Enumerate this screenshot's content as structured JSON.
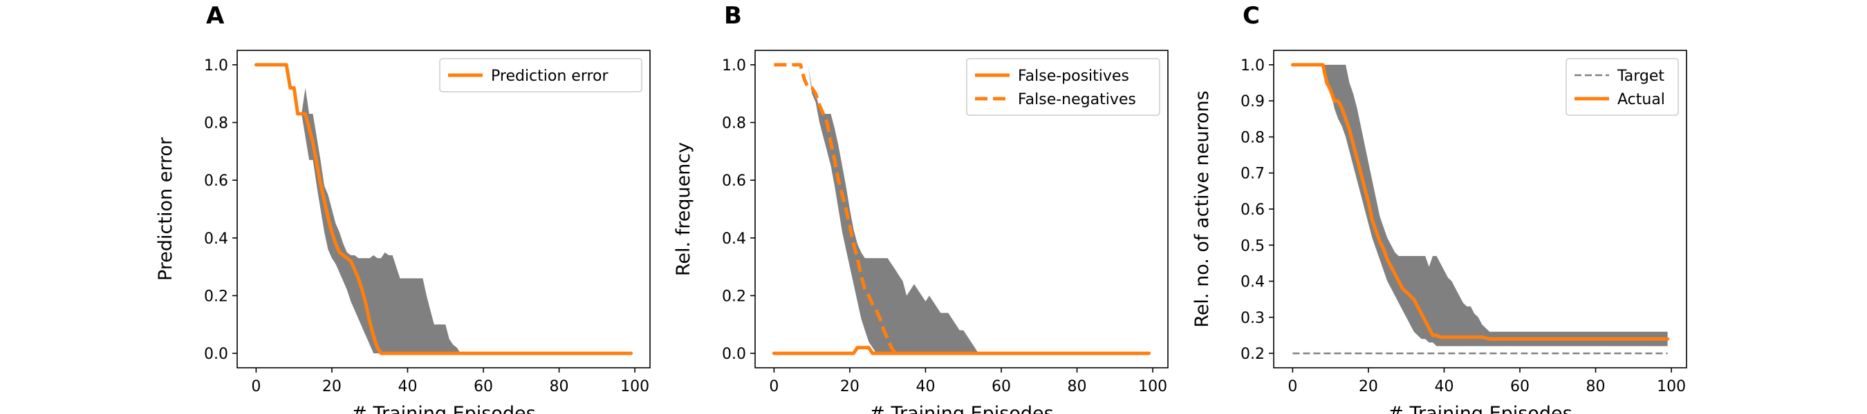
{
  "chart_data": [
    {
      "panel_label": "A",
      "type": "line",
      "xlabel": "# Training Episodes",
      "ylabel": "Prediction error",
      "xlim": [
        -5,
        104
      ],
      "ylim": [
        -0.05,
        1.05
      ],
      "xticks": [
        0,
        20,
        40,
        60,
        80,
        100
      ],
      "yticks": [
        0.0,
        0.2,
        0.4,
        0.6,
        0.8,
        1.0
      ],
      "ytick_labels": [
        "0.0",
        "0.2",
        "0.4",
        "0.6",
        "0.8",
        "1.0"
      ],
      "grid": false,
      "legend_position": "upper-right",
      "band_color": "#808080",
      "band": {
        "x": [
          0,
          8,
          10,
          11,
          12,
          13,
          14,
          15,
          16,
          17,
          18,
          19,
          20,
          21,
          22,
          23,
          24,
          25,
          26,
          27,
          28,
          29,
          30,
          31,
          32,
          33,
          34,
          35,
          36,
          37,
          38,
          39,
          40,
          41,
          42,
          43,
          44,
          45,
          46,
          47,
          48,
          49,
          50,
          51,
          52,
          53,
          54,
          55,
          56,
          60,
          80,
          99
        ],
        "upper": [
          1.0,
          1.0,
          0.92,
          0.92,
          0.83,
          0.92,
          0.83,
          0.83,
          0.75,
          0.67,
          0.58,
          0.55,
          0.5,
          0.45,
          0.42,
          0.38,
          0.35,
          0.34,
          0.34,
          0.33,
          0.33,
          0.33,
          0.33,
          0.34,
          0.33,
          0.33,
          0.35,
          0.34,
          0.34,
          0.3,
          0.26,
          0.26,
          0.26,
          0.26,
          0.26,
          0.26,
          0.26,
          0.2,
          0.15,
          0.1,
          0.1,
          0.1,
          0.1,
          0.05,
          0.03,
          0.02,
          0.0,
          0.0,
          0.0,
          0.0,
          0.0,
          0.0
        ],
        "lower": [
          1.0,
          1.0,
          0.92,
          0.92,
          0.83,
          0.75,
          0.67,
          0.67,
          0.58,
          0.5,
          0.42,
          0.36,
          0.33,
          0.31,
          0.28,
          0.25,
          0.22,
          0.18,
          0.15,
          0.12,
          0.09,
          0.06,
          0.03,
          0.0,
          0.0,
          0.0,
          0.0,
          0.0,
          0.0,
          0.0,
          0.0,
          0.0,
          0.0,
          0.0,
          0.0,
          0.0,
          0.0,
          0.0,
          0.0,
          0.0,
          0.0,
          0.0,
          0.0,
          0.0,
          0.0,
          0.0,
          0.0,
          0.0,
          0.0,
          0.0,
          0.0,
          0.0
        ]
      },
      "series": [
        {
          "name": "Prediction error",
          "color": "#ff7f0e",
          "dash": "solid",
          "x": [
            0,
            8,
            9,
            10,
            11,
            12,
            13,
            14,
            15,
            16,
            17,
            18,
            19,
            20,
            21,
            22,
            23,
            24,
            25,
            26,
            27,
            28,
            29,
            30,
            31,
            32,
            33,
            34,
            36,
            40,
            60,
            80,
            99
          ],
          "y": [
            1.0,
            1.0,
            0.92,
            0.92,
            0.83,
            0.83,
            0.83,
            0.78,
            0.73,
            0.66,
            0.59,
            0.53,
            0.47,
            0.42,
            0.38,
            0.35,
            0.34,
            0.33,
            0.32,
            0.29,
            0.26,
            0.22,
            0.17,
            0.11,
            0.06,
            0.02,
            0.0,
            0.0,
            0.0,
            0.0,
            0.0,
            0.0,
            0.0
          ]
        }
      ]
    },
    {
      "panel_label": "B",
      "type": "line",
      "xlabel": "# Training Episodes",
      "ylabel": "Rel. frequency",
      "xlim": [
        -5,
        104
      ],
      "ylim": [
        -0.05,
        1.05
      ],
      "xticks": [
        0,
        20,
        40,
        60,
        80,
        100
      ],
      "yticks": [
        0.0,
        0.2,
        0.4,
        0.6,
        0.8,
        1.0
      ],
      "ytick_labels": [
        "0.0",
        "0.2",
        "0.4",
        "0.6",
        "0.8",
        "1.0"
      ],
      "grid": false,
      "legend_position": "upper-right",
      "band_color": "#808080",
      "band": {
        "x": [
          0,
          9,
          10,
          11,
          12,
          13,
          14,
          15,
          16,
          17,
          18,
          19,
          20,
          21,
          22,
          23,
          24,
          25,
          26,
          27,
          28,
          29,
          30,
          31,
          32,
          33,
          34,
          35,
          36,
          37,
          38,
          39,
          40,
          41,
          42,
          43,
          44,
          45,
          46,
          47,
          48,
          49,
          50,
          51,
          52,
          53,
          54,
          55,
          56,
          60,
          80,
          99
        ],
        "upper": [
          1.0,
          1.0,
          0.92,
          0.9,
          0.85,
          0.83,
          0.83,
          0.83,
          0.78,
          0.72,
          0.65,
          0.58,
          0.5,
          0.43,
          0.38,
          0.35,
          0.33,
          0.33,
          0.33,
          0.33,
          0.33,
          0.33,
          0.33,
          0.31,
          0.29,
          0.27,
          0.25,
          0.2,
          0.22,
          0.24,
          0.22,
          0.2,
          0.18,
          0.2,
          0.18,
          0.16,
          0.14,
          0.14,
          0.14,
          0.12,
          0.1,
          0.08,
          0.08,
          0.06,
          0.04,
          0.02,
          0.0,
          0.0,
          0.0,
          0.0,
          0.0,
          0.0
        ],
        "lower": [
          1.0,
          1.0,
          0.9,
          0.87,
          0.8,
          0.75,
          0.7,
          0.65,
          0.58,
          0.5,
          0.42,
          0.36,
          0.3,
          0.24,
          0.18,
          0.12,
          0.08,
          0.04,
          0.02,
          0.0,
          0.0,
          0.0,
          0.0,
          0.0,
          0.0,
          0.0,
          0.0,
          0.0,
          0.0,
          0.0,
          0.0,
          0.0,
          0.0,
          0.0,
          0.0,
          0.0,
          0.0,
          0.0,
          0.0,
          0.0,
          0.0,
          0.0,
          0.0,
          0.0,
          0.0,
          0.0,
          0.0,
          0.0,
          0.0,
          0.0,
          0.0,
          0.0
        ]
      },
      "series": [
        {
          "name": "False-positives",
          "color": "#ff7f0e",
          "dash": "solid",
          "x": [
            0,
            20,
            21,
            22,
            24,
            25,
            26,
            27,
            28,
            40,
            60,
            80,
            99
          ],
          "y": [
            0.0,
            0.0,
            0.0,
            0.02,
            0.02,
            0.02,
            0.0,
            0.0,
            0.0,
            0.0,
            0.0,
            0.0,
            0.0
          ]
        },
        {
          "name": "False-negatives",
          "color": "#ff7f0e",
          "dash": "dashed",
          "x": [
            0,
            7,
            8,
            9,
            10,
            11,
            12,
            13,
            14,
            15,
            16,
            17,
            18,
            19,
            20,
            21,
            22,
            23,
            24,
            25,
            26,
            27,
            28,
            29,
            30,
            31,
            32,
            33
          ],
          "y": [
            1.0,
            1.0,
            0.95,
            0.92,
            0.92,
            0.9,
            0.86,
            0.83,
            0.8,
            0.73,
            0.67,
            0.6,
            0.55,
            0.5,
            0.44,
            0.38,
            0.33,
            0.27,
            0.22,
            0.2,
            0.17,
            0.15,
            0.12,
            0.08,
            0.05,
            0.02,
            0.0,
            0.0
          ]
        }
      ]
    },
    {
      "panel_label": "C",
      "type": "line",
      "xlabel": "# Training Episodes",
      "ylabel": "Rel. no. of active neurons",
      "xlim": [
        -5,
        104
      ],
      "ylim": [
        0.16,
        1.04
      ],
      "xticks": [
        0,
        20,
        40,
        60,
        80,
        100
      ],
      "yticks": [
        0.2,
        0.3,
        0.4,
        0.5,
        0.6,
        0.7,
        0.8,
        0.9,
        1.0
      ],
      "ytick_labels": [
        "0.2",
        "0.3",
        "0.4",
        "0.5",
        "0.6",
        "0.7",
        "0.8",
        "0.9",
        "1.0"
      ],
      "grid": false,
      "legend_position": "upper-right",
      "band_color": "#808080",
      "band": {
        "x": [
          0,
          8,
          9,
          10,
          11,
          12,
          13,
          14,
          15,
          16,
          17,
          18,
          19,
          20,
          21,
          22,
          23,
          24,
          25,
          26,
          27,
          28,
          29,
          30,
          31,
          32,
          33,
          34,
          35,
          36,
          37,
          38,
          39,
          40,
          41,
          42,
          43,
          44,
          45,
          46,
          47,
          48,
          49,
          50,
          51,
          52,
          53,
          54,
          55,
          60,
          80,
          99
        ],
        "upper": [
          1.0,
          1.0,
          1.0,
          1.0,
          1.0,
          1.0,
          1.0,
          1.0,
          0.95,
          0.92,
          0.88,
          0.83,
          0.78,
          0.73,
          0.68,
          0.63,
          0.58,
          0.55,
          0.52,
          0.5,
          0.48,
          0.47,
          0.47,
          0.47,
          0.47,
          0.47,
          0.47,
          0.47,
          0.47,
          0.44,
          0.47,
          0.47,
          0.45,
          0.43,
          0.41,
          0.4,
          0.38,
          0.36,
          0.34,
          0.33,
          0.33,
          0.31,
          0.3,
          0.28,
          0.27,
          0.26,
          0.26,
          0.26,
          0.26,
          0.26,
          0.26,
          0.26
        ],
        "lower": [
          1.0,
          1.0,
          0.97,
          0.93,
          0.88,
          0.85,
          0.83,
          0.8,
          0.76,
          0.72,
          0.68,
          0.64,
          0.6,
          0.56,
          0.52,
          0.49,
          0.46,
          0.43,
          0.4,
          0.38,
          0.36,
          0.34,
          0.32,
          0.3,
          0.28,
          0.26,
          0.25,
          0.24,
          0.24,
          0.23,
          0.23,
          0.22,
          0.22,
          0.22,
          0.22,
          0.22,
          0.22,
          0.22,
          0.22,
          0.22,
          0.22,
          0.22,
          0.22,
          0.22,
          0.22,
          0.22,
          0.22,
          0.22,
          0.22,
          0.22,
          0.22,
          0.22
        ]
      },
      "series": [
        {
          "name": "Target",
          "color": "#808080",
          "dash": "thin-dashed",
          "x": [
            0,
            99
          ],
          "y": [
            0.2,
            0.2
          ]
        },
        {
          "name": "Actual",
          "color": "#ff7f0e",
          "dash": "solid",
          "x": [
            0,
            8,
            9,
            10,
            11,
            12,
            13,
            14,
            15,
            16,
            17,
            18,
            19,
            20,
            21,
            22,
            23,
            24,
            25,
            26,
            27,
            28,
            29,
            30,
            31,
            32,
            33,
            34,
            35,
            36,
            37,
            38,
            39,
            40,
            45,
            50,
            52,
            60,
            80,
            99
          ],
          "y": [
            1.0,
            1.0,
            0.95,
            0.93,
            0.9,
            0.9,
            0.88,
            0.85,
            0.82,
            0.78,
            0.74,
            0.7,
            0.66,
            0.62,
            0.57,
            0.54,
            0.51,
            0.49,
            0.46,
            0.44,
            0.42,
            0.4,
            0.38,
            0.37,
            0.36,
            0.35,
            0.33,
            0.31,
            0.29,
            0.27,
            0.25,
            0.25,
            0.245,
            0.245,
            0.245,
            0.245,
            0.24,
            0.24,
            0.24,
            0.24
          ]
        }
      ]
    }
  ]
}
